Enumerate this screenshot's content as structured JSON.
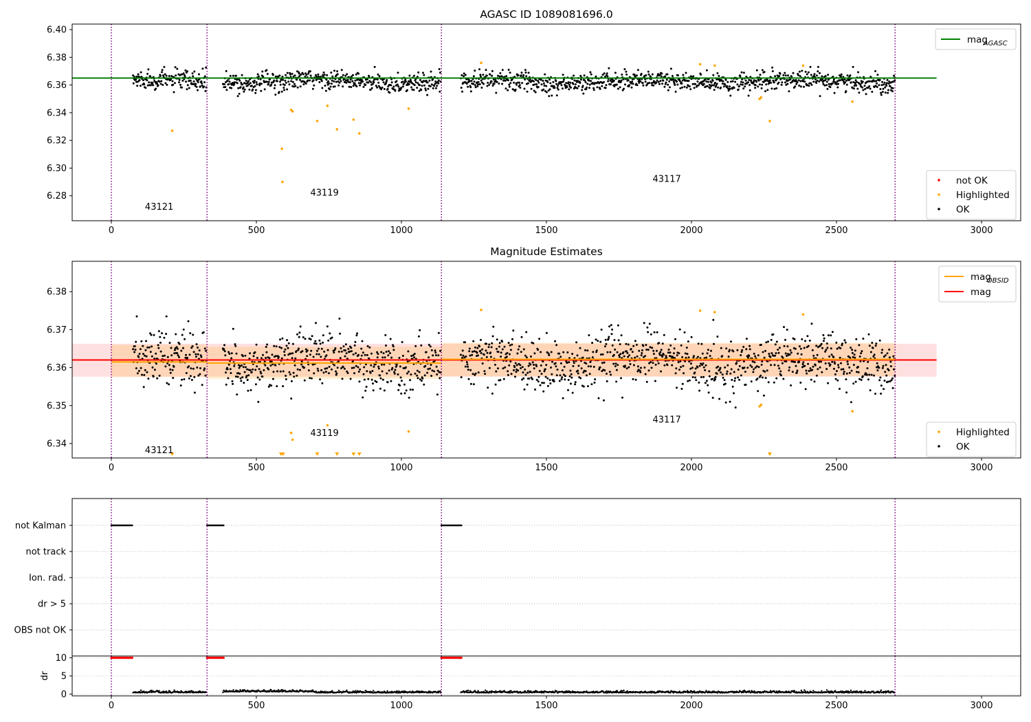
{
  "chart_data": [
    {
      "type": "scatter",
      "title": "AGASC ID 1089081696.0",
      "xlim": [
        -135,
        3135
      ],
      "ylim": [
        6.262,
        6.404
      ],
      "x_ticks": [
        0,
        500,
        1000,
        1500,
        2000,
        2500,
        3000
      ],
      "y_ticks": [
        6.28,
        6.3,
        6.32,
        6.34,
        6.36,
        6.38,
        6.4
      ],
      "y_tick_labels": [
        "6.28",
        "6.30",
        "6.32",
        "6.34",
        "6.36",
        "6.38",
        "6.40"
      ],
      "mag_agasc": 6.365,
      "line_x_range": [
        -135,
        2845
      ],
      "obsid_boundaries": [
        0,
        330,
        1138,
        2702
      ],
      "obsid_labels": [
        {
          "text": "43121",
          "x": 165,
          "y": 6.27
        },
        {
          "text": "43119",
          "x": 735,
          "y": 6.28
        },
        {
          "text": "43117",
          "x": 1915,
          "y": 6.29
        }
      ],
      "ok_segments": [
        [
          75,
          328
        ],
        [
          385,
          1136
        ],
        [
          1205,
          2702
        ]
      ],
      "highlighted_points": [
        [
          210,
          6.327
        ],
        [
          588,
          6.314
        ],
        [
          590,
          6.29
        ],
        [
          620,
          6.342
        ],
        [
          625,
          6.341
        ],
        [
          710,
          6.334
        ],
        [
          745,
          6.345
        ],
        [
          778,
          6.328
        ],
        [
          835,
          6.335
        ],
        [
          855,
          6.325
        ],
        [
          1025,
          6.343
        ],
        [
          1275,
          6.376
        ],
        [
          2030,
          6.375
        ],
        [
          2080,
          6.374
        ],
        [
          2235,
          6.35
        ],
        [
          2240,
          6.351
        ],
        [
          2270,
          6.334
        ],
        [
          2385,
          6.374
        ],
        [
          2555,
          6.348
        ]
      ],
      "legend_top": [
        {
          "label": "mag",
          "sub": "AGASC",
          "color": "#008000",
          "kind": "line"
        }
      ],
      "legend_bottom": [
        {
          "label": "not OK",
          "color": "#ff0000",
          "kind": "marker"
        },
        {
          "label": "Highlighted",
          "color": "#ffa500",
          "kind": "marker"
        },
        {
          "label": "OK",
          "color": "#000000",
          "kind": "marker"
        }
      ]
    },
    {
      "type": "scatter",
      "title": "Magnitude Estimates",
      "xlim": [
        -135,
        3135
      ],
      "ylim": [
        6.3362,
        6.388
      ],
      "x_ticks": [
        0,
        500,
        1000,
        1500,
        2000,
        2500,
        3000
      ],
      "y_ticks": [
        6.34,
        6.35,
        6.36,
        6.37,
        6.38
      ],
      "y_tick_labels": [
        "6.34",
        "6.35",
        "6.36",
        "6.37",
        "6.38"
      ],
      "mag": 6.362,
      "mag_band": [
        6.3576,
        6.3663
      ],
      "mag_obsid_segments": [
        {
          "x": [
            0,
            330
          ],
          "mag": 6.3615,
          "band": [
            6.3575,
            6.366
          ]
        },
        {
          "x": [
            330,
            1138
          ],
          "mag": 6.3612,
          "band": [
            6.357,
            6.3655
          ]
        },
        {
          "x": [
            1138,
            2702
          ],
          "mag": 6.3622,
          "band": [
            6.3577,
            6.3665
          ]
        }
      ],
      "obsid_boundaries": [
        0,
        330,
        1138,
        2702
      ],
      "obsid_labels": [
        {
          "text": "43121",
          "x": 165,
          "y": 6.3375
        },
        {
          "text": "43119",
          "x": 735,
          "y": 6.342
        },
        {
          "text": "43117",
          "x": 1915,
          "y": 6.3455
        }
      ],
      "highlighted_points": [
        [
          1275,
          6.3752
        ],
        [
          2030,
          6.375
        ],
        [
          2080,
          6.3746
        ],
        [
          2385,
          6.374
        ],
        [
          620,
          6.3428
        ],
        [
          625,
          6.341
        ],
        [
          745,
          6.3448
        ],
        [
          1025,
          6.3432
        ],
        [
          2235,
          6.3498
        ],
        [
          2240,
          6.3502
        ],
        [
          2555,
          6.3485
        ]
      ],
      "offscale_markers_x": [
        210,
        585,
        592,
        710,
        778,
        835,
        855,
        2270
      ],
      "legend_top": [
        {
          "label": "mag",
          "sub": "OBSID",
          "color": "#ffa500",
          "kind": "line"
        },
        {
          "label": "mag",
          "sub": "",
          "color": "#ff0000",
          "kind": "line"
        }
      ],
      "legend_bottom": [
        {
          "label": "Highlighted",
          "color": "#ffa500",
          "kind": "marker"
        },
        {
          "label": "OK",
          "color": "#000000",
          "kind": "marker"
        }
      ]
    },
    {
      "type": "scatter",
      "title": "",
      "xlim": [
        -135,
        3135
      ],
      "flag_categories": [
        "not Kalman",
        "not track",
        "Ion. rad.",
        "dr > 5",
        "OBS not OK"
      ],
      "flag_segments": {
        "not Kalman": [
          [
            0,
            72
          ],
          [
            330,
            388
          ],
          [
            1138,
            1208
          ]
        ],
        "not track": [],
        "Ion. rad.": [],
        "dr > 5": [],
        "OBS not OK": []
      },
      "obsid_boundaries": [
        0,
        330,
        1138,
        2702
      ]
    },
    {
      "type": "scatter",
      "title": "",
      "ylabel": "dr",
      "xlim": [
        -135,
        3135
      ],
      "ylim": [
        -0.5,
        10.5
      ],
      "x_ticks": [
        0,
        500,
        1000,
        1500,
        2000,
        2500,
        3000
      ],
      "x_tick_labels": [
        "0",
        "500",
        "1000",
        "1500",
        "2000",
        "2500",
        "3000"
      ],
      "y_ticks": [
        0,
        5,
        10
      ],
      "y_tick_labels": [
        "0",
        "5",
        "10"
      ],
      "dr_clipped_segments": [
        [
          0,
          72
        ],
        [
          330,
          388
        ],
        [
          1138,
          1208
        ]
      ],
      "dr_clip_value": 10,
      "dr_ok_segments": [
        [
          75,
          328
        ],
        [
          385,
          1136
        ],
        [
          1205,
          2702
        ]
      ],
      "obsid_boundaries": [
        0,
        330,
        1138,
        2702
      ]
    }
  ]
}
